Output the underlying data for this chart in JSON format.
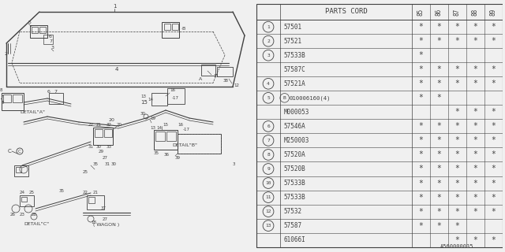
{
  "bg_color": "#f0f0f0",
  "diagram_bg": "#f0f0f0",
  "line_color": "#404040",
  "table_header": "PARTS CORD",
  "year_cols": [
    "85",
    "86",
    "87",
    "88",
    "89"
  ],
  "parts": [
    {
      "ref": "1",
      "code": "57501",
      "years": [
        1,
        1,
        1,
        1,
        1
      ],
      "ref_show": true
    },
    {
      "ref": "2",
      "code": "57521",
      "years": [
        1,
        1,
        1,
        1,
        1
      ],
      "ref_show": true
    },
    {
      "ref": "3",
      "code": "57533B",
      "years": [
        1,
        0,
        0,
        0,
        0
      ],
      "ref_show": true
    },
    {
      "ref": "3",
      "code": "57587C",
      "years": [
        1,
        1,
        1,
        1,
        1
      ],
      "ref_show": false
    },
    {
      "ref": "4",
      "code": "57521A",
      "years": [
        1,
        1,
        1,
        1,
        1
      ],
      "ref_show": true
    },
    {
      "ref": "5",
      "code": "B010006160(4)",
      "years": [
        1,
        1,
        0,
        0,
        0
      ],
      "ref_show": true,
      "b_circle": true
    },
    {
      "ref": "5",
      "code": "M000053",
      "years": [
        0,
        0,
        1,
        1,
        1
      ],
      "ref_show": false
    },
    {
      "ref": "6",
      "code": "57546A",
      "years": [
        1,
        1,
        1,
        1,
        1
      ],
      "ref_show": true
    },
    {
      "ref": "7",
      "code": "M250003",
      "years": [
        1,
        1,
        1,
        1,
        1
      ],
      "ref_show": true
    },
    {
      "ref": "8",
      "code": "57520A",
      "years": [
        1,
        1,
        1,
        1,
        1
      ],
      "ref_show": true
    },
    {
      "ref": "9",
      "code": "57520B",
      "years": [
        1,
        1,
        1,
        1,
        1
      ],
      "ref_show": true
    },
    {
      "ref": "10",
      "code": "57533B",
      "years": [
        1,
        1,
        1,
        1,
        1
      ],
      "ref_show": true
    },
    {
      "ref": "11",
      "code": "57533B",
      "years": [
        1,
        1,
        1,
        1,
        1
      ],
      "ref_show": true
    },
    {
      "ref": "12",
      "code": "57532",
      "years": [
        1,
        1,
        1,
        1,
        1
      ],
      "ref_show": true
    },
    {
      "ref": "13",
      "code": "57587",
      "years": [
        1,
        1,
        1,
        0,
        0
      ],
      "ref_show": true
    },
    {
      "ref": "13",
      "code": "61066I",
      "years": [
        0,
        0,
        1,
        1,
        1
      ],
      "ref_show": false
    }
  ],
  "footer_text": "A560000035"
}
